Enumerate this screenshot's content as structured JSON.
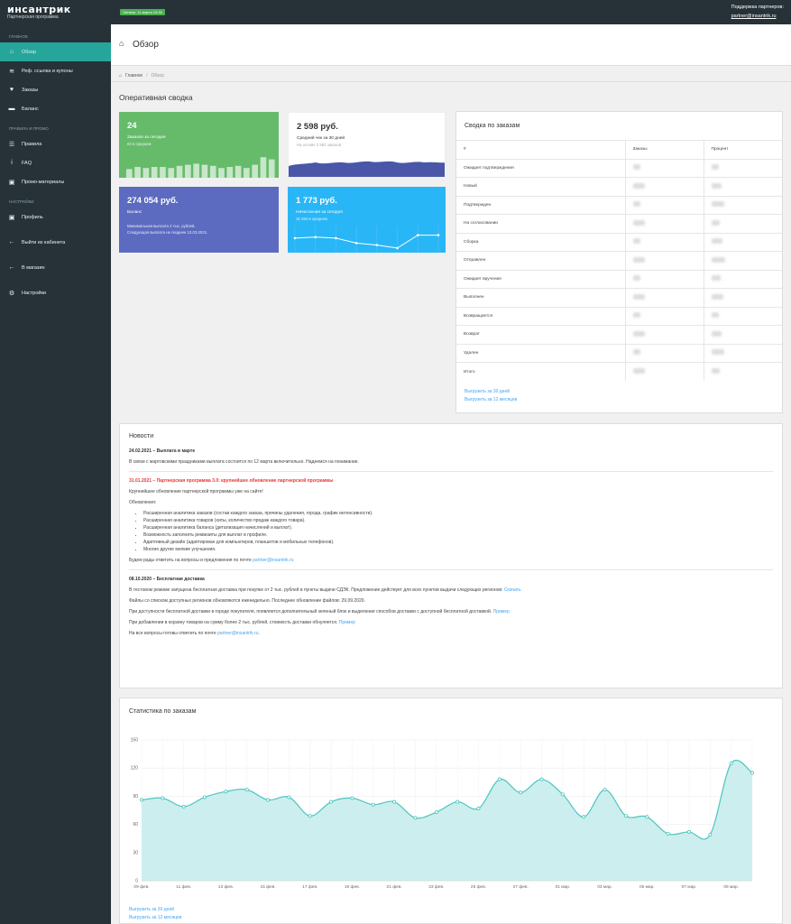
{
  "brand": {
    "name": "инсантрик",
    "sub": "Партнерская программа"
  },
  "date_badge": "Четверг, 11 марта 15:30",
  "support": {
    "label": "Поддержка партнеров:",
    "email": "partner@insantrik.ru"
  },
  "sidebar": {
    "sec_main": "Главное",
    "items_main": [
      {
        "label": "Обзор",
        "icon": "home-icon"
      },
      {
        "label": "Реф. ссылка и купоны",
        "icon": "wifi-icon"
      },
      {
        "label": "Заказы",
        "icon": "heart-icon"
      },
      {
        "label": "Баланс",
        "icon": "wallet-icon"
      }
    ],
    "sec_rules": "Правила и промо",
    "items_rules": [
      {
        "label": "Правила",
        "icon": "list-icon"
      },
      {
        "label": "FAQ",
        "icon": "info-icon"
      },
      {
        "label": "Промо-материалы",
        "icon": "image-icon"
      }
    ],
    "sec_settings": "Настройки",
    "items_settings": [
      {
        "label": "Профиль",
        "icon": "image-icon"
      },
      {
        "label": "Выйти из кабинета",
        "icon": "arrow-left-icon"
      },
      {
        "label": "В магазин",
        "icon": "arrow-left-icon"
      },
      {
        "label": "Настройки",
        "icon": "gear-icon"
      }
    ]
  },
  "header": {
    "title": "Обзор"
  },
  "breadcrumb": {
    "home": "Главное",
    "current": "Обзор"
  },
  "section_title": "Оперативная сводка",
  "tiles": {
    "orders": {
      "value": "24",
      "label": "Заказов за сегодня",
      "sub": "83 в среднем",
      "bars": [
        0.4,
        0.5,
        0.45,
        0.5,
        0.5,
        0.45,
        0.55,
        0.6,
        0.65,
        0.6,
        0.55,
        0.45,
        0.5,
        0.55,
        0.45,
        0.6,
        0.95,
        0.85
      ]
    },
    "avg": {
      "value": "2 598 руб.",
      "label": "Средний чек за 30 дней",
      "sub": "На основе 2 582 заказов"
    },
    "balance": {
      "value": "274 054 руб.",
      "label": "Баланс",
      "sub1": "Минимальная выплата 2 тыс. рублей.",
      "sub2": "Следующая выплата не позднее 12.03.2021."
    },
    "accruals": {
      "value": "1 773 руб.",
      "label": "Начисления за сегодня",
      "sub": "16 294 в среднем",
      "points": [
        0.55,
        0.6,
        0.55,
        0.3,
        0.2,
        0.05,
        0.7,
        0.7
      ]
    }
  },
  "summary": {
    "title": "Сводка по заказам",
    "headers": [
      "#",
      "Заказы",
      "Процент"
    ],
    "rows": [
      "Ожидает подтверждения",
      "Новый",
      "Подтвержден",
      "На согласовании",
      "Сборка",
      "Отправлен",
      "Ожидает вручения",
      "Выполнен",
      "Возвращается",
      "Возврат",
      "Удален",
      "Итого"
    ],
    "link30": "Выгрузить за 30 дней",
    "link12": "Выгрузить за 12 месяцев"
  },
  "news": {
    "title": "Новости",
    "n1": {
      "head": "24.02.2021 – Выплата в марте",
      "text": "В связи с мартовскими праздниками выплата состоится по 12 марта включительно. Надеемся на понимание."
    },
    "n2": {
      "head": "31.01.2021 – Партнерская программа 3.0: крупнейшее обновление партнерской программы",
      "p1": "Крупнейшее обновление партнерской программы уже на сайте!",
      "p2": "Обновления:",
      "list": [
        "Расширенная аналитика заказов (состав каждого заказа, причины удаления, города, график интенсивности).",
        "Расширенная аналитика товаров (хиты, количество продаж каждого товара).",
        "Расширенная аналитика баланса (детализация начислений и выплат).",
        "Возможность заполнить реквизиты для выплат в профиле.",
        "Адаптивный дизайн (адаптирован для компьютеров, планшетов и мобильных телефонов).",
        "Многие другие мелкие улучшения."
      ],
      "p3": "Будем рады ответить на вопросы и предложения по почте ",
      "p3link": "partner@insantrik.ru"
    },
    "n3": {
      "head": "08.10.2020 – Бесплатная доставка",
      "p1": "В тестовом режиме запущена бесплатная доставка при покупке от 2 тыс. рублей в пункты выдачи СДЭК. Предложение действует для всех пунктов выдачи следующих регионов: ",
      "p1link": "Скачать",
      "p2": "Файлы со списком доступных регионов обновляются еженедельно. Последнее обновление файлов: 29.09.2020.",
      "p3": "При доступности бесплатной доставки в городе покупателя, появляется дополнительный зеленый блок и выделение способов доставки с доступной бесплатной доставкой. ",
      "p3link": "Пример",
      "p4": "При добавлении в корзину товаров на сумму более 2 тыс. рублей, стоимость доставки обнуляется. ",
      "p4link": "Пример",
      "p5": "На все вопросы готовы ответить по почте ",
      "p5link": "partner@insantrik.ru",
      "p5end": "."
    }
  },
  "stats": {
    "title": "Статистика по заказам",
    "link30": "Выгрузить за 30 дней",
    "link12": "Выгрузить за 12 месяцев"
  },
  "chart_data": {
    "type": "area",
    "title": "Статистика по заказам",
    "ylim": [
      0,
      150
    ],
    "yticks": [
      0,
      30,
      60,
      90,
      120,
      150
    ],
    "x": [
      "09 фев.",
      "10 фев.",
      "11 фев.",
      "12 фев.",
      "13 фев.",
      "14 фев.",
      "15 фев.",
      "16 фев.",
      "17 фев.",
      "18 фев.",
      "19 фев.",
      "20 фев.",
      "21 фев.",
      "22 фев.",
      "23 фев.",
      "24 фев.",
      "25 фев.",
      "26 фев.",
      "27 фев.",
      "28 фев.",
      "01 мар.",
      "02 мар.",
      "03 мар.",
      "04 мар.",
      "05 мар.",
      "06 мар.",
      "07 мар.",
      "08 мар.",
      "09 мар.",
      "10 мар."
    ],
    "xticks": [
      "09 фев.",
      "11 фев.",
      "13 фев.",
      "15 фев.",
      "17 фев.",
      "19 фев.",
      "21 фев.",
      "23 фев.",
      "25 фев.",
      "27 фев.",
      "01 мар.",
      "03 мар.",
      "05 мар.",
      "07 мар.",
      "09 мар."
    ],
    "values": [
      86,
      88,
      79,
      89,
      95,
      97,
      86,
      89,
      69,
      84,
      88,
      81,
      84,
      67,
      73,
      84,
      77,
      108,
      94,
      108,
      92,
      68,
      97,
      69,
      68,
      50,
      52,
      49,
      125,
      115
    ],
    "color": "#4dc5c0",
    "grid": true
  }
}
